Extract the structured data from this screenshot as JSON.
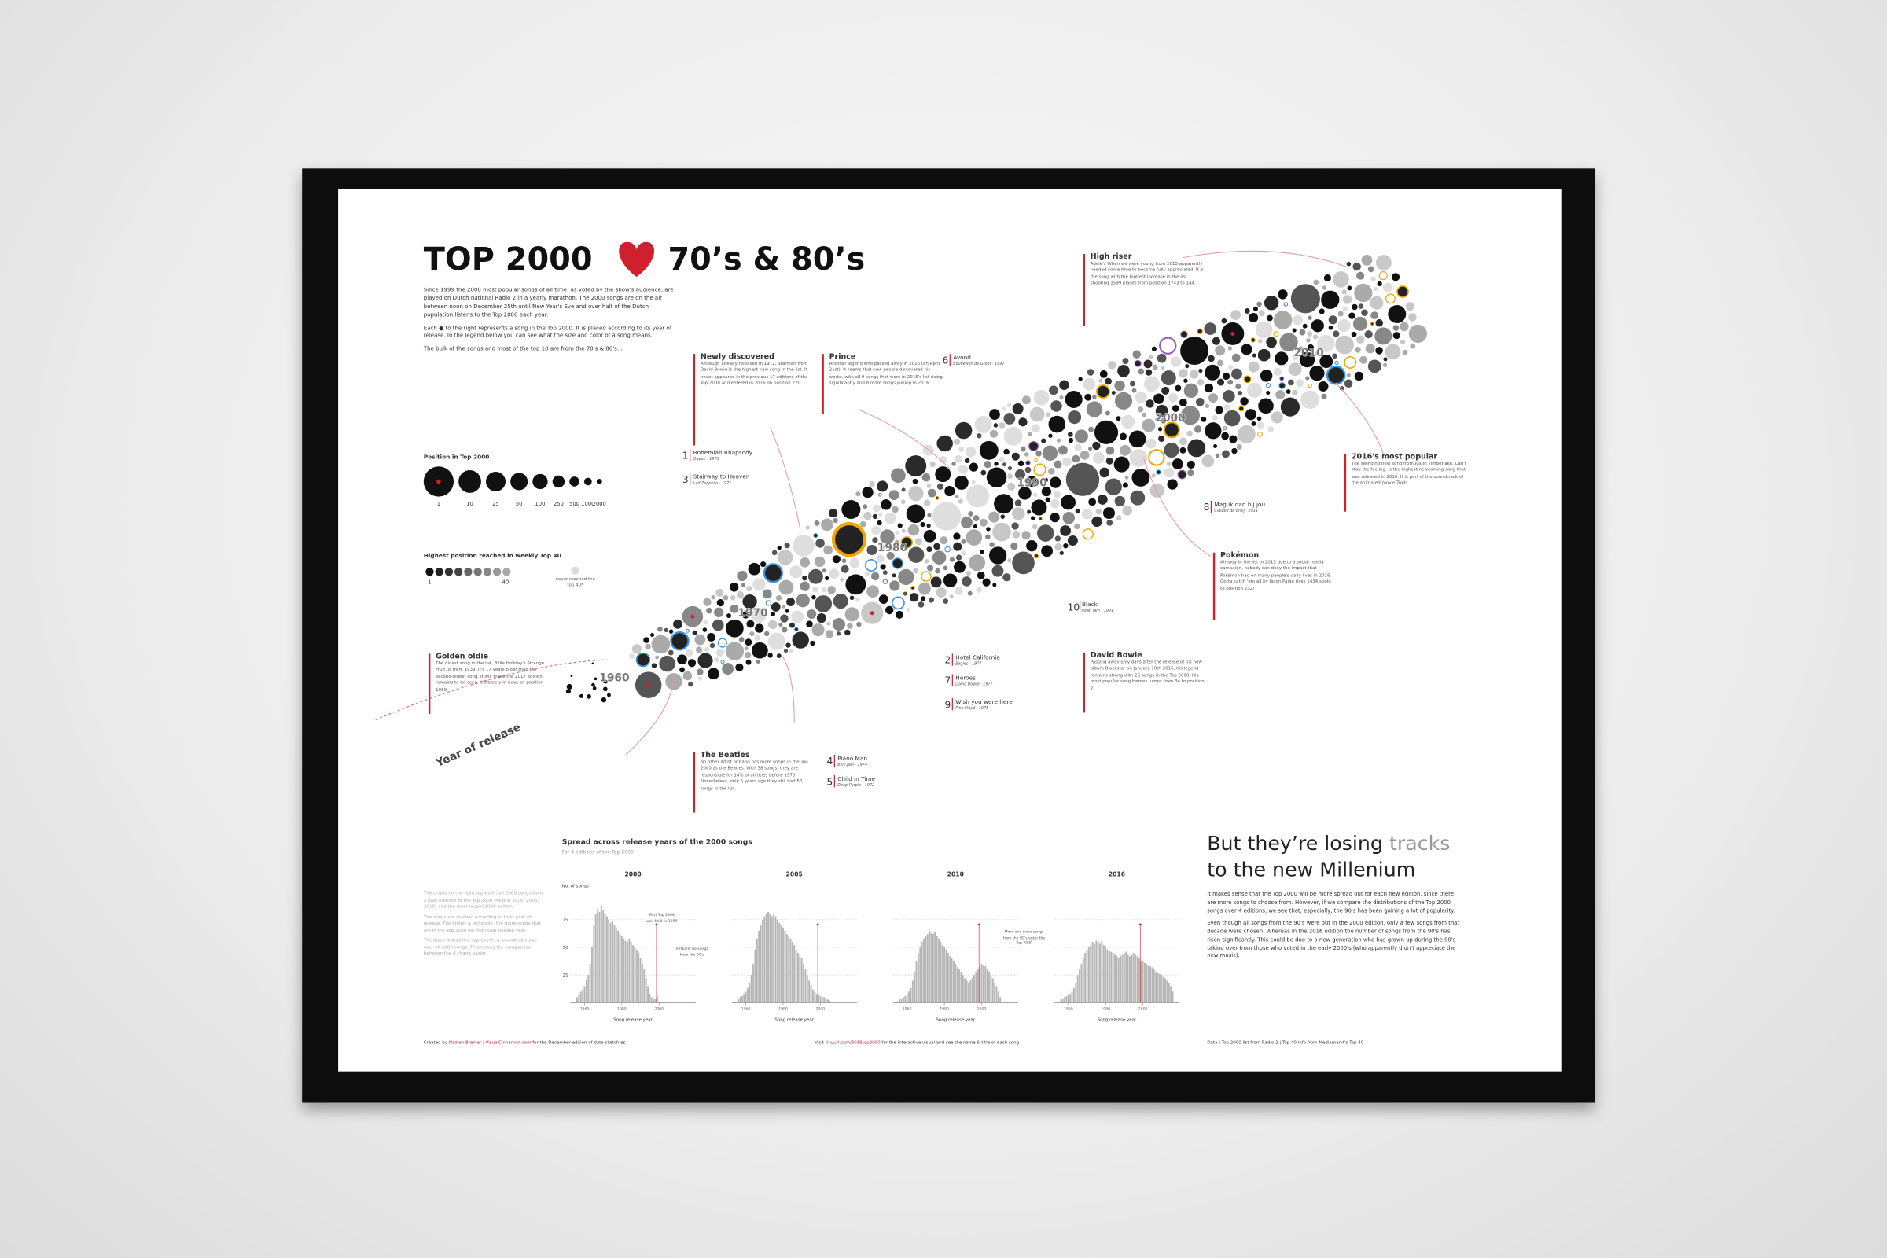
{
  "header": {
    "title_left": "TOP 2000",
    "title_right": "70’s & 80’s"
  },
  "intro": [
    "Since 1999 the 2000 most popular songs of all time, as voted by the show's audience, are played on Dutch national Radio 2 in a yearly marathon. The 2000 songs are on the air between noon on December 25th until New Year's Eve and over half of the Dutch population listens to the Top 2000 each year.",
    "Each ● to the right represents a song in the Top 2000. It is placed according to its year of release. In the legend below you can see what the size and color of a song means.",
    "The bulk of the songs and most of the top 10 are from the 70's & 80's..."
  ],
  "legend": {
    "size_title": "Position in Top 2000",
    "size_labels": [
      1,
      10,
      25,
      50,
      100,
      250,
      500,
      1000,
      2000
    ],
    "color_title": "Highest position reached in weekly Top 40",
    "color_labels": [
      1,
      40
    ],
    "color_none": "never reached the top 40*"
  },
  "decades": [
    1960,
    1970,
    1980,
    1990,
    2000,
    2010
  ],
  "axis_label": "Year of release",
  "callouts": [
    {
      "title": "Golden oldie",
      "text": "The oldest song in the list, Billie Holiday's Strange Fruit, is from 1939. It's 17 years older than the second-oldest song. It will make the 2017 edition remains to be seen, it's barely in now, on position 1989."
    },
    {
      "title": "Newly discovered",
      "text": "Although already released in 1972, Starman from David Bowie is the highest new song in the list. It never appeared in the previous 17 editions of the Top 2000 and entered in 2016 on position 270."
    },
    {
      "title": "Prince",
      "text": "Another legend who passed away in 2016 (on April 21st). It seems that new people discovered his works, with all 9 songs that were in 2015's list rising significantly and 8 more songs joining in 2016."
    },
    {
      "title": "High riser",
      "text": "Adele's When we were young from 2015 apparently needed some time to become fully appreciated. It is the song with the highest increase in the list, shooting 1599 places from position 1743 to 144."
    },
    {
      "title": "2016's most popular",
      "text": "The swinging new song from Justin Timberlake, Can't stop the feeling, is the highest newcoming song that was released in 2016. It is part of the soundtrack of the animated movie Trolls."
    },
    {
      "title": "Pokémon",
      "text": "Already in the list in 2015 due to a social media campaign, nobody can deny the impact that Pokémon had on many people's daily lives in 2016. Gotta catch 'em all by Jason Paige rises 1434 spots to position 232!"
    },
    {
      "title": "David Bowie",
      "text": "Passing away only days after the release of his new album Blackstar on January 10th 2016, his legend remains strong with 26 songs in the Top 2000. His most popular song Heroes jumps from 34 to position 7."
    },
    {
      "title": "The Beatles",
      "text": "No other artist or band has more songs in the Top 2000 as the Beatles. With 38 songs, they are responsible for 14% of all titles before 1970. Nonetheless, only 5 years ago they still had 50 songs in the list."
    }
  ],
  "top10": [
    {
      "rank": 1,
      "title": "Bohemian Rhapsody",
      "artist_year": "Queen · 1975"
    },
    {
      "rank": 2,
      "title": "Hotel California",
      "artist_year": "Eagles · 1977"
    },
    {
      "rank": 3,
      "title": "Stairway to Heaven",
      "artist_year": "Led Zeppelin · 1971"
    },
    {
      "rank": 4,
      "title": "Piano Man",
      "artist_year": "Billy Joel · 1974"
    },
    {
      "rank": 5,
      "title": "Child in Time",
      "artist_year": "Deep Purple · 1972"
    },
    {
      "rank": 6,
      "title": "Avond",
      "artist_year": "Boudewijn de Groot · 1997"
    },
    {
      "rank": 7,
      "title": "Heroes",
      "artist_year": "David Bowie · 1977"
    },
    {
      "rank": 8,
      "title": "Mag ik dan bij jou",
      "artist_year": "Claudia de Breij · 2011"
    },
    {
      "rank": 9,
      "title": "Wish you were here",
      "artist_year": "Pink Floyd · 1975"
    },
    {
      "rank": 10,
      "title": "Black",
      "artist_year": "Pearl Jam · 1991"
    }
  ],
  "spread_notes": [
    "The charts on the right represent all 2000 songs from 3 past editions of the Top 2000 (held in 2000, 2005, 2010) and the most recent 2016 edition.",
    "The songs are stacked according to their year of release. The higher a rectangle, the more songs that are in the Top 2000 list from that release year.",
    "The black dotted line represents a smoothed curve over all 2000 songs. This makes the comparison between the 4 charts easier."
  ],
  "chart_data": {
    "type": "bar",
    "title": "Spread across release years of the 2000 songs",
    "subtitle": "For 4 editions of the Top 2000",
    "y_label": "No. of songs",
    "x_label": "Song release year",
    "x": [
      1956,
      1957,
      1958,
      1959,
      1960,
      1961,
      1962,
      1963,
      1964,
      1965,
      1966,
      1967,
      1968,
      1969,
      1970,
      1971,
      1972,
      1973,
      1974,
      1975,
      1976,
      1977,
      1978,
      1979,
      1980,
      1981,
      1982,
      1983,
      1984,
      1985,
      1986,
      1987,
      1988,
      1989,
      1990,
      1991,
      1992,
      1993,
      1994,
      1995,
      1996,
      1997,
      1998,
      1999,
      2000,
      2001,
      2002,
      2003,
      2004,
      2005,
      2006,
      2007,
      2008,
      2009,
      2010,
      2011,
      2012,
      2013,
      2014,
      2015,
      2016
    ],
    "series": [
      {
        "name": "2000",
        "color": "#b5b5b5",
        "values": [
          5,
          8,
          10,
          12,
          15,
          20,
          25,
          35,
          50,
          70,
          80,
          85,
          82,
          88,
          84,
          80,
          78,
          75,
          72,
          74,
          70,
          68,
          65,
          62,
          60,
          58,
          56,
          55,
          58,
          55,
          52,
          50,
          48,
          45,
          40,
          35,
          30,
          22,
          15,
          8,
          5,
          3,
          4,
          6,
          0,
          0,
          0,
          0,
          0,
          0,
          0,
          0,
          0,
          0,
          0,
          0,
          0,
          0,
          0,
          0,
          0
        ]
      },
      {
        "name": "2005",
        "color": "#b5b5b5",
        "values": [
          3,
          5,
          6,
          8,
          10,
          14,
          18,
          25,
          35,
          48,
          58,
          65,
          70,
          75,
          78,
          80,
          82,
          80,
          78,
          80,
          78,
          75,
          72,
          70,
          68,
          65,
          62,
          60,
          58,
          55,
          52,
          48,
          45,
          42,
          40,
          35,
          30,
          25,
          20,
          16,
          12,
          10,
          8,
          7,
          6,
          5,
          5,
          4,
          3,
          2,
          0,
          0,
          0,
          0,
          0,
          0,
          0,
          0,
          0,
          0,
          0
        ]
      },
      {
        "name": "2010",
        "color": "#b5b5b5",
        "values": [
          3,
          4,
          5,
          6,
          8,
          10,
          14,
          20,
          28,
          38,
          45,
          50,
          55,
          58,
          60,
          62,
          65,
          63,
          62,
          64,
          60,
          58,
          55,
          52,
          50,
          48,
          45,
          42,
          40,
          38,
          35,
          32,
          30,
          28,
          25,
          22,
          20,
          18,
          20,
          22,
          25,
          28,
          30,
          32,
          35,
          34,
          33,
          30,
          28,
          25,
          22,
          18,
          15,
          10,
          5,
          0,
          0,
          0,
          0,
          0,
          0
        ]
      },
      {
        "name": "2016",
        "color": "#b5b5b5",
        "values": [
          3,
          4,
          5,
          6,
          7,
          8,
          10,
          14,
          18,
          25,
          30,
          35,
          40,
          45,
          48,
          50,
          52,
          55,
          53,
          56,
          55,
          54,
          56,
          52,
          50,
          48,
          47,
          46,
          45,
          44,
          42,
          40,
          42,
          44,
          45,
          46,
          44,
          42,
          43,
          45,
          44,
          42,
          40,
          38,
          38,
          36,
          35,
          34,
          33,
          32,
          30,
          28,
          27,
          26,
          25,
          24,
          22,
          20,
          18,
          15,
          10
        ]
      }
    ],
    "xlim": [
      1955,
      2017
    ],
    "ylim": [
      0,
      100
    ],
    "xticks": [
      1960,
      1980,
      2000
    ],
    "yticks": [
      25,
      50,
      75
    ],
    "grid": true,
    "annotations": [
      "First Top 2000 was held in 1999",
      "Virtually no songs from the 90's",
      "More and more songs from the 90's enter the Top 2000"
    ]
  },
  "conclusion": {
    "heading_a": "But they’re losing",
    "heading_b": "tracks",
    "heading_c": "to the new Millenium",
    "paragraphs": [
      "It makes sense that the Top 2000 will be more spread out for each new edition, since there are more songs to choose from. However, if we compare the distributions of the Top 2000 songs over 4 editions, we see that, especially, the 90's has been gaining a lot of popularity.",
      "Even though all songs from the 90's were out in the 2000 edition, only a few songs from that decade were chosen. Whereas in the 2016 edition the number of songs from the 90's has risen significantly. This could be due to a new generation who has grown up during the 90's taking over from those who voted in the early 2000's (who apparently didn't appreciate the new music)."
    ]
  },
  "footer": {
    "credit_a": "Created by",
    "credit_link": "Nadieh Bremer | VisualCinnamon.com",
    "credit_b": "for the December edition of data sketch|es",
    "visit_a": "Visit",
    "visit_link": "tinyurl.com/2016top2000",
    "visit_b": "for the interactive visual and see the name & title of each song",
    "source": "Data | Top 2000 list from Radio 2 | Top 40 info from Mediamarkt's Top 40"
  }
}
